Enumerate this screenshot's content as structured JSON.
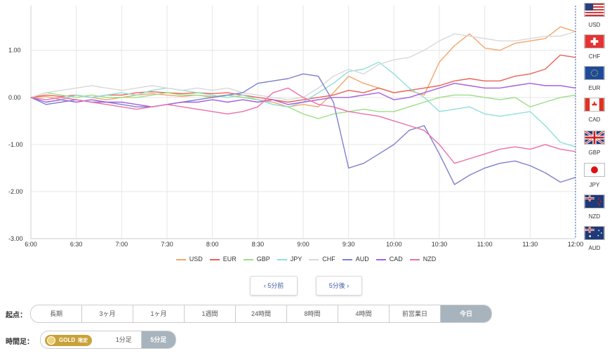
{
  "chart_data": {
    "type": "line",
    "x": [
      "6:00",
      "6:10",
      "6:20",
      "6:30",
      "6:40",
      "6:50",
      "7:00",
      "7:10",
      "7:20",
      "7:30",
      "7:40",
      "7:50",
      "8:00",
      "8:10",
      "8:20",
      "8:30",
      "8:40",
      "8:50",
      "9:00",
      "9:10",
      "9:20",
      "9:30",
      "9:40",
      "9:50",
      "10:00",
      "10:10",
      "10:20",
      "10:30",
      "10:40",
      "10:50",
      "11:00",
      "11:10",
      "11:20",
      "11:30",
      "11:40",
      "11:50",
      "12:00"
    ],
    "x_ticks": [
      "6:00",
      "6:30",
      "7:00",
      "7:30",
      "8:00",
      "8:30",
      "9:00",
      "9:30",
      "10:00",
      "10:30",
      "11:00",
      "11:30",
      "12:00"
    ],
    "y_ticks": [
      "1.00",
      "0.00",
      "-1.00",
      "-2.00",
      "-3.00"
    ],
    "ylim": [
      -3.0,
      1.95
    ],
    "series": [
      {
        "name": "USD",
        "color": "#f4a46a",
        "values": [
          0,
          0.02,
          -0.05,
          0.05,
          0.0,
          -0.05,
          0.0,
          0.05,
          0.08,
          0.05,
          0.02,
          0.05,
          0.02,
          0.05,
          0.0,
          -0.05,
          -0.1,
          -0.2,
          -0.15,
          -0.2,
          0.1,
          0.45,
          0.3,
          0.2,
          0.1,
          0.15,
          0.05,
          0.75,
          1.1,
          1.35,
          1.05,
          1.0,
          1.15,
          1.2,
          1.25,
          1.5,
          1.4
        ]
      },
      {
        "name": "EUR",
        "color": "#ea6158",
        "values": [
          0,
          0.05,
          0.02,
          0.05,
          0.0,
          0.05,
          0.05,
          0.1,
          0.12,
          0.1,
          0.08,
          0.1,
          0.08,
          0.1,
          0.05,
          0.0,
          -0.05,
          -0.1,
          -0.05,
          0.0,
          0.05,
          0.15,
          0.1,
          0.2,
          0.1,
          0.15,
          0.2,
          0.25,
          0.35,
          0.4,
          0.35,
          0.35,
          0.45,
          0.5,
          0.6,
          0.9,
          0.85
        ]
      },
      {
        "name": "GBP",
        "color": "#9adf84",
        "values": [
          0,
          0.1,
          0.05,
          0.0,
          0.05,
          0.0,
          0.0,
          0.0,
          0.05,
          0.1,
          0.05,
          0.05,
          0.0,
          0.05,
          0.0,
          -0.05,
          -0.15,
          -0.2,
          -0.35,
          -0.45,
          -0.35,
          -0.3,
          -0.25,
          -0.3,
          -0.3,
          -0.2,
          -0.1,
          0.0,
          0.05,
          0.05,
          0.0,
          -0.05,
          0.0,
          -0.2,
          -0.1,
          0.0,
          0.05
        ]
      },
      {
        "name": "JPY",
        "color": "#8ee0d6",
        "values": [
          0,
          -0.1,
          -0.05,
          0.05,
          0.0,
          0.05,
          0.1,
          0.05,
          0.15,
          0.2,
          0.15,
          0.1,
          0.05,
          0.0,
          0.05,
          -0.05,
          -0.15,
          -0.2,
          -0.1,
          0.1,
          0.3,
          0.55,
          0.6,
          0.75,
          0.5,
          0.2,
          0.0,
          -0.3,
          -0.25,
          -0.2,
          -0.35,
          -0.4,
          -0.35,
          -0.3,
          -0.6,
          -0.95,
          -1.05
        ]
      },
      {
        "name": "CHF",
        "color": "#d8d8d8",
        "values": [
          0,
          0.1,
          0.15,
          0.2,
          0.25,
          0.2,
          0.15,
          0.2,
          0.25,
          0.2,
          0.15,
          0.2,
          0.15,
          0.2,
          0.1,
          0.05,
          0.0,
          -0.05,
          0.0,
          0.2,
          0.45,
          0.6,
          0.5,
          0.7,
          0.8,
          0.85,
          1.0,
          1.2,
          1.35,
          1.3,
          1.25,
          1.2,
          1.2,
          1.25,
          1.3,
          1.3,
          1.4
        ]
      },
      {
        "name": "AUD",
        "color": "#7d7fd0",
        "values": [
          0,
          -0.15,
          -0.1,
          -0.05,
          -0.1,
          -0.1,
          -0.15,
          -0.2,
          -0.2,
          -0.15,
          -0.1,
          -0.05,
          0.0,
          0.05,
          0.1,
          0.3,
          0.35,
          0.4,
          0.5,
          0.45,
          -0.1,
          -1.5,
          -1.4,
          -1.2,
          -1.0,
          -0.7,
          -0.6,
          -1.2,
          -1.85,
          -1.65,
          -1.5,
          -1.4,
          -1.35,
          -1.45,
          -1.6,
          -1.8,
          -1.7
        ]
      },
      {
        "name": "CAD",
        "color": "#a55fdc",
        "values": [
          0,
          -0.1,
          -0.05,
          -0.1,
          -0.05,
          -0.1,
          -0.1,
          -0.15,
          -0.2,
          -0.15,
          -0.1,
          -0.1,
          -0.05,
          -0.1,
          -0.05,
          -0.1,
          -0.05,
          -0.15,
          -0.1,
          -0.05,
          0.0,
          0.0,
          0.05,
          0.1,
          -0.05,
          0.0,
          0.1,
          0.2,
          0.3,
          0.25,
          0.2,
          0.2,
          0.25,
          0.3,
          0.25,
          0.25,
          0.2
        ]
      },
      {
        "name": "NZD",
        "color": "#ea6fa9",
        "values": [
          0,
          -0.05,
          0.0,
          -0.05,
          -0.1,
          -0.15,
          -0.2,
          -0.25,
          -0.2,
          -0.15,
          -0.2,
          -0.25,
          -0.3,
          -0.35,
          -0.3,
          -0.2,
          0.1,
          0.2,
          0.0,
          -0.15,
          -0.2,
          -0.3,
          -0.35,
          -0.4,
          -0.5,
          -0.6,
          -0.7,
          -1.0,
          -1.4,
          -1.3,
          -1.2,
          -1.1,
          -1.05,
          -1.1,
          -1.0,
          -1.1,
          -1.15
        ]
      }
    ]
  },
  "flags": [
    {
      "code": "USD"
    },
    {
      "code": "CHF"
    },
    {
      "code": "EUR"
    },
    {
      "code": "CAD"
    },
    {
      "code": "GBP"
    },
    {
      "code": "JPY"
    },
    {
      "code": "NZD"
    },
    {
      "code": "AUD"
    }
  ],
  "nav": {
    "prev": "‹ 5分前",
    "next": "5分後 ›"
  },
  "start": {
    "label": "起点：",
    "options": [
      "長期",
      "3ヶ月",
      "1ヶ月",
      "1週間",
      "24時間",
      "8時間",
      "4時間",
      "前営業日",
      "今日"
    ],
    "active": "今日"
  },
  "interval": {
    "label": "時間足：",
    "gold": "GOLD",
    "gold_badge": "限定",
    "options": [
      "1分足",
      "5分足"
    ],
    "active": "5分足"
  }
}
